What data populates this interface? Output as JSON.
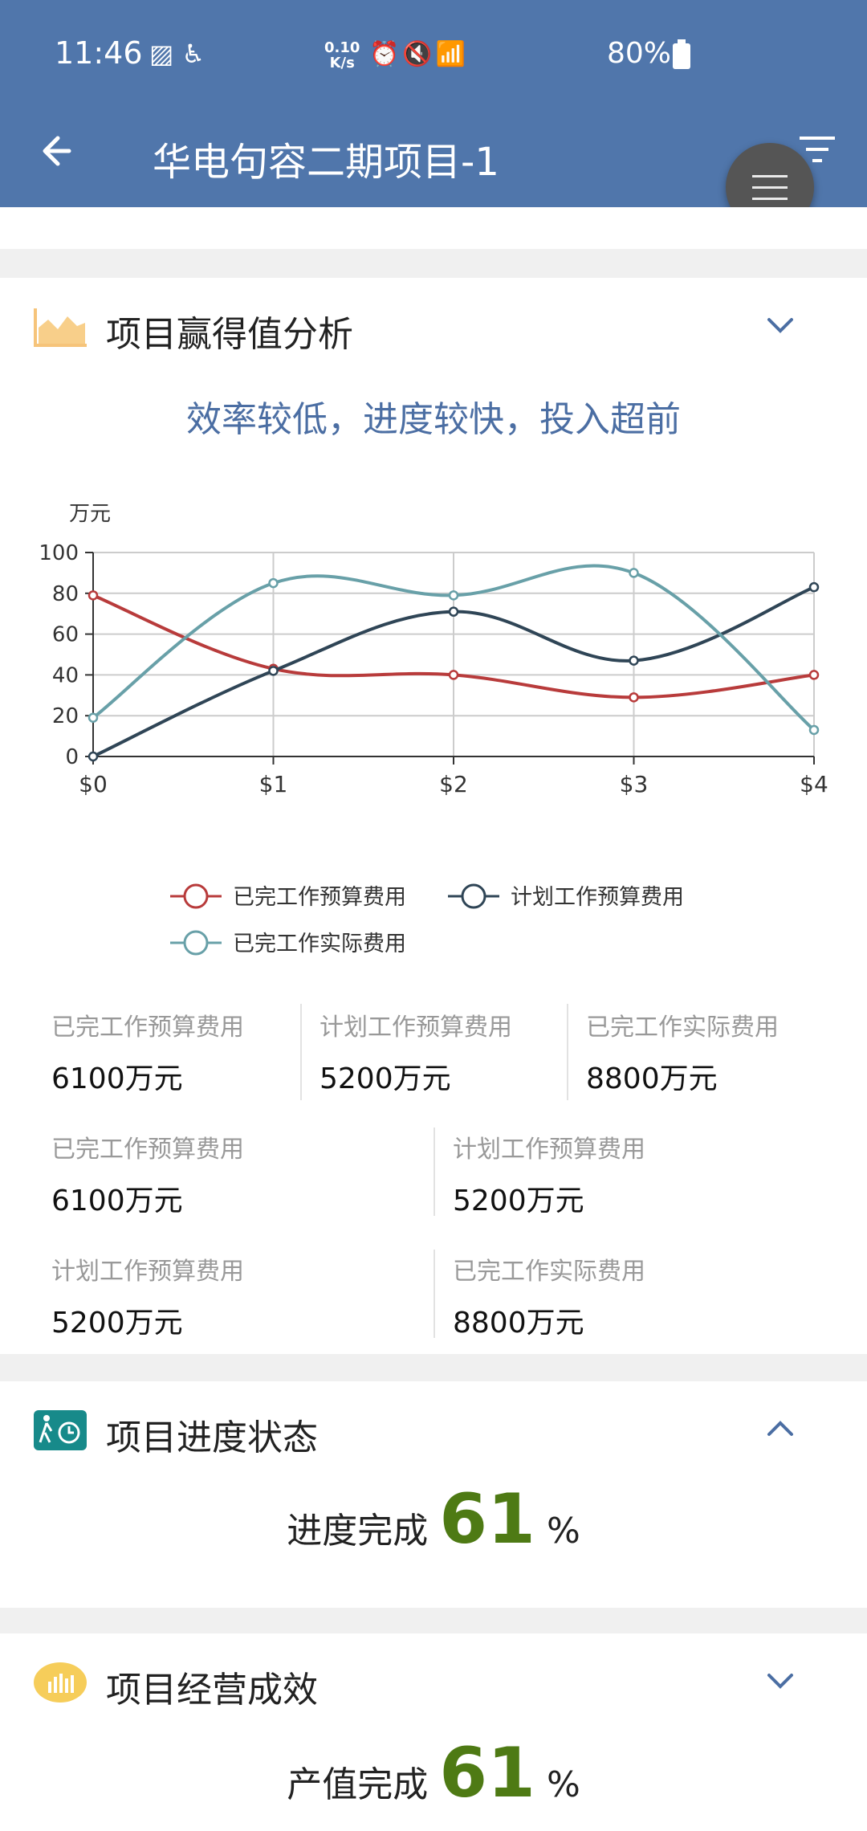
{
  "status_bar": {
    "time": "11:46",
    "net_speed_top": "0.10",
    "net_speed_bottom": "K/s",
    "battery": "80%"
  },
  "app_bar": {
    "title": "华电句容二期项目-1",
    "back_icon": "arrow-left-icon",
    "filter_icon": "filter-icon"
  },
  "earned_value": {
    "title": "项目赢得值分析",
    "verdict": "效率较低，进度较快，投入超前",
    "stats_row1": [
      {
        "label": "已完工作预算费用",
        "value": "6100万元"
      },
      {
        "label": "计划工作预算费用",
        "value": "5200万元"
      },
      {
        "label": "已完工作实际费用",
        "value": "8800万元"
      }
    ],
    "stats_row2": [
      {
        "label": "已完工作预算费用",
        "value": "6100万元"
      },
      {
        "label": "计划工作预算费用",
        "value": "5200万元"
      }
    ],
    "stats_row3": [
      {
        "label": "计划工作预算费用",
        "value": "5200万元"
      },
      {
        "label": "已完工作实际费用",
        "value": "8800万元"
      }
    ]
  },
  "chart_data": {
    "type": "line",
    "ylabel": "万元",
    "categories": [
      "$0",
      "$1",
      "$2",
      "$3",
      "$4"
    ],
    "ylim": [
      0,
      100
    ],
    "yticks": [
      "0",
      "20",
      "40",
      "60",
      "80",
      "100"
    ],
    "grid": true,
    "legend_position": "bottom",
    "series": [
      {
        "name": "已完工作预算费用",
        "color": "#b83b3b",
        "values": [
          79,
          43,
          40,
          29,
          40
        ]
      },
      {
        "name": "计划工作预算费用",
        "color": "#2f4556",
        "values": [
          0,
          42,
          71,
          47,
          83
        ]
      },
      {
        "name": "已完工作实际费用",
        "color": "#68a0a8",
        "values": [
          19,
          85,
          79,
          90,
          13
        ]
      }
    ]
  },
  "progress": {
    "title": "项目进度状态",
    "label": "进度完成",
    "value": "61",
    "unit": "%"
  },
  "operation": {
    "title": "项目经营成效",
    "label": "产值完成",
    "value": "61",
    "unit": "%"
  }
}
